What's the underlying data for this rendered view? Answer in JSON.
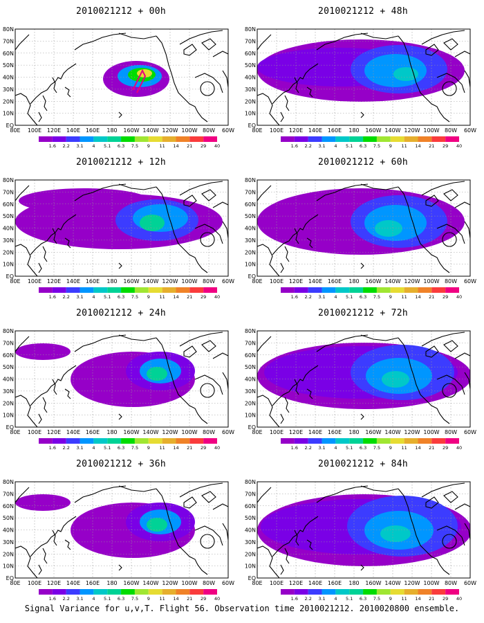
{
  "caption": "Signal Variance for u,v,T. Flight 56. Observation time 2010021212. 2010020800 ensemble.",
  "lon_labels": [
    "80E",
    "100E",
    "120E",
    "140E",
    "160E",
    "180",
    "160W",
    "140W",
    "120W",
    "100W",
    "80W",
    "60W"
  ],
  "lat_labels": [
    "80N",
    "70N",
    "60N",
    "50N",
    "40N",
    "30N",
    "20N",
    "10N",
    "EQ"
  ],
  "legend_labels": [
    "1.6",
    "2.2",
    "3.1",
    "4",
    "5.1",
    "6.3",
    "7.5",
    "9",
    "11",
    "14",
    "21",
    "29",
    "40"
  ],
  "colors": {
    "scale": [
      "#9600c8",
      "#7a00e6",
      "#3c3cff",
      "#0096ff",
      "#00c8c8",
      "#00d296",
      "#00dc00",
      "#a0e632",
      "#e6dc32",
      "#e6af2d",
      "#f08228",
      "#fa3c3c",
      "#f00082"
    ],
    "coast": "#000000",
    "grid": "#999999",
    "arrow": "#e6007e"
  },
  "panels": [
    {
      "title": "2010021212 + 00h",
      "level": 0
    },
    {
      "title": "2010021212 + 48h",
      "level": 3
    },
    {
      "title": "2010021212 + 12h",
      "level": 1
    },
    {
      "title": "2010021212 + 60h",
      "level": 4
    },
    {
      "title": "2010021212 + 24h",
      "level": 2
    },
    {
      "title": "2010021212 + 72h",
      "level": 5
    },
    {
      "title": "2010021212 + 36h",
      "level": 2
    },
    {
      "title": "2010021212 + 84h",
      "level": 6
    }
  ]
}
